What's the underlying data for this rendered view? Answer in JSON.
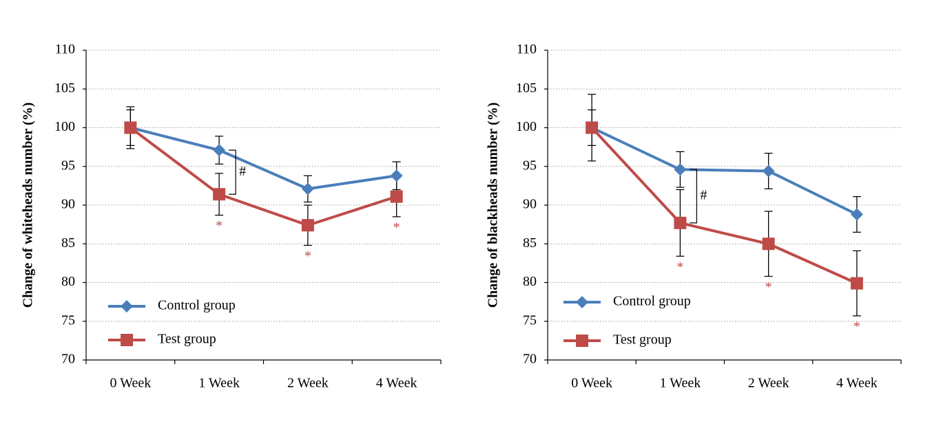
{
  "chart_data": [
    {
      "type": "line",
      "y_label": "Change of whiteheads number (%)",
      "categories": [
        "0 Week",
        "1 Week",
        "2 Week",
        "4 Week"
      ],
      "ylim": [
        70,
        110
      ],
      "yticks": [
        70,
        75,
        80,
        85,
        90,
        95,
        100,
        105,
        110
      ],
      "grid": true,
      "legend": "lower left",
      "series": [
        {
          "name": "Control group",
          "color": "#4a7ebb",
          "marker": "diamond",
          "values": [
            100,
            97.1,
            92.1,
            93.8
          ],
          "errors": [
            2.7,
            1.8,
            1.7,
            1.8
          ]
        },
        {
          "name": "Test group",
          "color": "#be4b48",
          "marker": "square",
          "values": [
            100,
            91.4,
            87.4,
            91.1
          ],
          "errors": [
            2.3,
            2.7,
            2.6,
            2.6
          ],
          "marks": [
            null,
            "*",
            "*",
            "*"
          ]
        }
      ],
      "brackets": [
        null,
        "#",
        null,
        null
      ]
    },
    {
      "type": "line",
      "y_label": "Change of blackheads number (%)",
      "categories": [
        "0 Week",
        "1 Week",
        "2 Week",
        "4 Week"
      ],
      "ylim": [
        70,
        110
      ],
      "yticks": [
        70,
        75,
        80,
        85,
        90,
        95,
        100,
        105,
        110
      ],
      "grid": true,
      "legend": "lower left",
      "series": [
        {
          "name": "Control group",
          "color": "#4a7ebb",
          "marker": "diamond",
          "values": [
            100,
            94.6,
            94.4,
            88.8
          ],
          "errors": [
            2.3,
            2.3,
            2.3,
            2.3
          ]
        },
        {
          "name": "Test group",
          "color": "#be4b48",
          "marker": "square",
          "values": [
            100,
            87.7,
            85,
            79.9
          ],
          "errors": [
            4.3,
            4.3,
            4.2,
            4.2
          ],
          "marks": [
            null,
            "*",
            "*",
            "*"
          ]
        }
      ],
      "brackets": [
        null,
        "#",
        null,
        null
      ]
    }
  ]
}
